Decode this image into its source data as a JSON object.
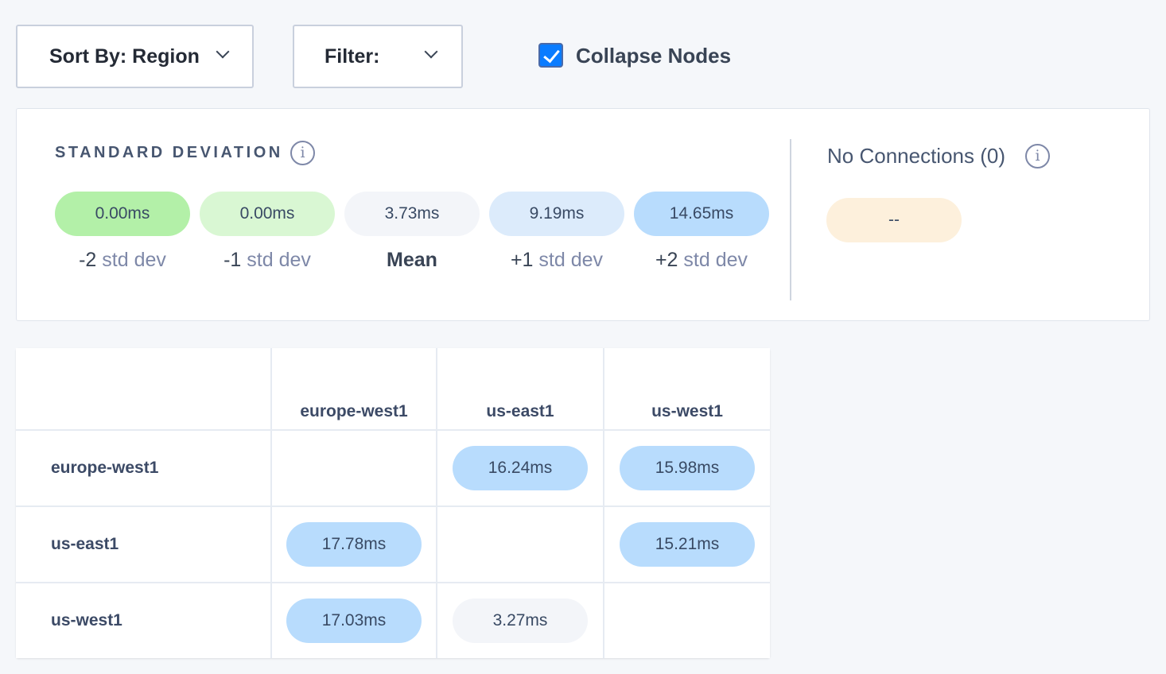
{
  "toolbar": {
    "sort_label": "Sort By: Region",
    "filter_label": "Filter:",
    "collapse_label": "Collapse Nodes",
    "collapse_checked": true
  },
  "std": {
    "heading": "STANDARD DEVIATION",
    "items": [
      {
        "value": "0.00ms",
        "prefix": "-2",
        "suffix": "std dev",
        "color": "#b3f0a8"
      },
      {
        "value": "0.00ms",
        "prefix": "-1",
        "suffix": "std dev",
        "color": "#d9f7d3"
      },
      {
        "value": "3.73ms",
        "prefix": "Mean",
        "suffix": "",
        "color": "#f3f5f9"
      },
      {
        "value": "9.19ms",
        "prefix": "+1",
        "suffix": "std dev",
        "color": "#dcebfb"
      },
      {
        "value": "14.65ms",
        "prefix": "+2",
        "suffix": "std dev",
        "color": "#b8dcfd"
      }
    ]
  },
  "no_conn": {
    "label": "No Connections (0)",
    "value": "--",
    "color": "#fdf0dc"
  },
  "matrix": {
    "columns": [
      "europe-west1",
      "us-east1",
      "us-west1"
    ],
    "rows": [
      {
        "label": "europe-west1",
        "cells": [
          "",
          "16.24ms",
          "15.98ms"
        ]
      },
      {
        "label": "us-east1",
        "cells": [
          "17.78ms",
          "",
          "15.21ms"
        ]
      },
      {
        "label": "us-west1",
        "cells": [
          "17.03ms",
          "3.27ms",
          ""
        ]
      }
    ],
    "colors": {
      "high": "#b8dcfd",
      "mean": "#f3f5f9"
    }
  }
}
